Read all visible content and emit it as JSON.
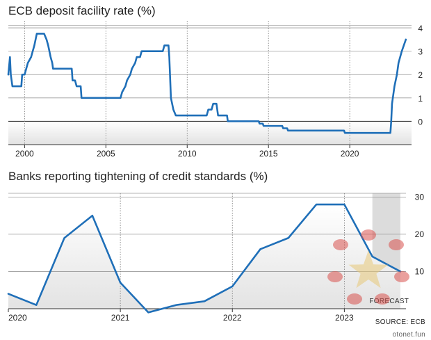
{
  "chart_data": [
    {
      "type": "line",
      "title": "ECB deposit facility rate (%)",
      "xlabel": "",
      "ylabel": "",
      "xlim": [
        1999.0,
        2023.8
      ],
      "ylim": [
        -1,
        4.3
      ],
      "x_ticks": [
        2000,
        2005,
        2010,
        2015,
        2020
      ],
      "x_tick_labels": [
        "2000",
        "2005",
        "2010",
        "2015",
        "2020"
      ],
      "y_ticks": [
        0,
        1,
        2,
        3,
        4
      ],
      "y_tick_labels": [
        "0",
        "1",
        "2",
        "3",
        "4"
      ],
      "grid": {
        "horizontal": true,
        "vertical_dotted": true
      },
      "color": "#1f6fb8",
      "series": [
        {
          "x": [
            1999.0,
            1999.1,
            1999.15,
            1999.25,
            1999.8,
            1999.85,
            2000.0,
            2000.1,
            2000.2,
            2000.4,
            2000.5,
            2000.6,
            2000.75,
            2001.2,
            2001.35,
            2001.45,
            2001.6,
            2001.7,
            2001.75,
            2001.9,
            2002.9,
            2002.95,
            2003.1,
            2003.2,
            2003.45,
            2003.5,
            2005.9,
            2006.0,
            2006.2,
            2006.3,
            2006.5,
            2006.6,
            2006.8,
            2006.9,
            2007.1,
            2007.2,
            2007.4,
            2007.5,
            2008.5,
            2008.6,
            2008.85,
            2008.9,
            2009.0,
            2009.15,
            2009.3,
            2009.35,
            2011.2,
            2011.3,
            2011.5,
            2011.6,
            2011.8,
            2011.9,
            2012.45,
            2012.5,
            2014.4,
            2014.45,
            2014.65,
            2014.7,
            2015.85,
            2015.9,
            2016.15,
            2016.2,
            2019.65,
            2019.7,
            2022.5,
            2022.55,
            2022.6,
            2022.75,
            2022.9,
            2023.0,
            2023.2,
            2023.45
          ],
          "y": [
            2.0,
            2.75,
            2.0,
            1.5,
            1.5,
            2.0,
            2.0,
            2.25,
            2.5,
            2.75,
            3.0,
            3.25,
            3.75,
            3.75,
            3.5,
            3.25,
            2.75,
            2.5,
            2.25,
            2.25,
            2.25,
            1.75,
            1.75,
            1.5,
            1.5,
            1.0,
            1.0,
            1.25,
            1.5,
            1.75,
            2.0,
            2.25,
            2.5,
            2.75,
            2.75,
            3.0,
            3.0,
            3.0,
            3.0,
            3.25,
            3.25,
            2.75,
            1.0,
            0.5,
            0.25,
            0.25,
            0.25,
            0.5,
            0.5,
            0.75,
            0.75,
            0.25,
            0.25,
            0.0,
            0.0,
            -0.1,
            -0.1,
            -0.2,
            -0.2,
            -0.3,
            -0.3,
            -0.4,
            -0.4,
            -0.5,
            -0.5,
            0.0,
            0.75,
            1.5,
            2.0,
            2.5,
            3.0,
            3.5
          ]
        }
      ]
    },
    {
      "type": "area",
      "title": "Banks reporting tightening of credit standards (%)",
      "xlabel": "",
      "ylabel": "",
      "xlim": [
        2020.0,
        2023.55
      ],
      "ylim": [
        0,
        31
      ],
      "x_ticks": [
        2020,
        2021,
        2022,
        2023
      ],
      "x_tick_labels": [
        "2020",
        "2021",
        "2022",
        "2023"
      ],
      "y_ticks": [
        10,
        20,
        30
      ],
      "y_tick_labels": [
        "10",
        "20",
        "30"
      ],
      "grid": {
        "horizontal": true,
        "vertical_dotted": true
      },
      "color": "#1f6fb8",
      "forecast": {
        "label": "FORECAST",
        "x_start": 2023.25,
        "x_end": 2023.5
      },
      "series": [
        {
          "x": [
            2020.0,
            2020.25,
            2020.5,
            2020.75,
            2021.0,
            2021.25,
            2021.5,
            2021.75,
            2022.0,
            2022.25,
            2022.5,
            2022.75,
            2023.0,
            2023.25,
            2023.5
          ],
          "y": [
            4,
            1,
            19,
            25,
            7,
            -1,
            1,
            2,
            6,
            16,
            19,
            28,
            28,
            14,
            10
          ]
        }
      ]
    }
  ],
  "source": "SOURCE: ECB",
  "watermark": "otonet.fun"
}
